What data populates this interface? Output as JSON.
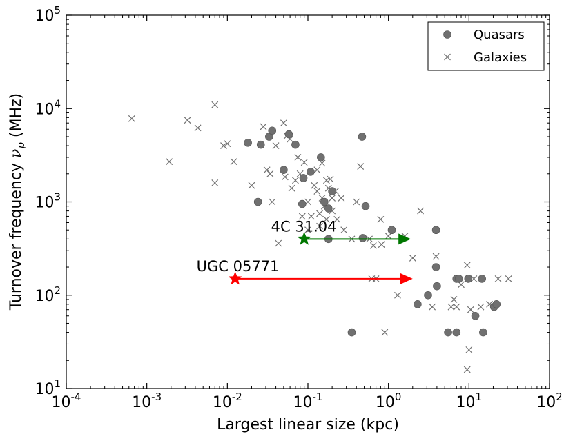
{
  "chart_data": {
    "type": "scatter",
    "title": "",
    "xlabel": "Largest linear size (kpc)",
    "ylabel": "Turnover frequency ν_p (MHz)",
    "xscale": "log",
    "yscale": "log",
    "xlim": [
      0.0001,
      100
    ],
    "ylim": [
      10,
      100000
    ],
    "x_ticks": [
      {
        "base": "10",
        "exp": "-4"
      },
      {
        "base": "10",
        "exp": "-3"
      },
      {
        "base": "10",
        "exp": "-2"
      },
      {
        "base": "10",
        "exp": "-1"
      },
      {
        "base": "10",
        "exp": "0"
      },
      {
        "base": "10",
        "exp": "1"
      },
      {
        "base": "10",
        "exp": "2"
      }
    ],
    "y_ticks": [
      {
        "base": "10",
        "exp": "1"
      },
      {
        "base": "10",
        "exp": "2"
      },
      {
        "base": "10",
        "exp": "3"
      },
      {
        "base": "10",
        "exp": "4"
      },
      {
        "base": "10",
        "exp": "5"
      }
    ],
    "legend_position": "top-right",
    "series": [
      {
        "name": "Quasars",
        "marker": "circle",
        "color": "#707070",
        "points": [
          [
            0.018,
            4300
          ],
          [
            0.024,
            1000
          ],
          [
            0.026,
            4100
          ],
          [
            0.033,
            5000
          ],
          [
            0.036,
            5800
          ],
          [
            0.05,
            2200
          ],
          [
            0.058,
            5300
          ],
          [
            0.07,
            4100
          ],
          [
            0.085,
            950
          ],
          [
            0.088,
            1800
          ],
          [
            0.108,
            2100
          ],
          [
            0.145,
            3000
          ],
          [
            0.16,
            1000
          ],
          [
            0.18,
            400
          ],
          [
            0.2,
            1300
          ],
          [
            0.18,
            850
          ],
          [
            0.35,
            40
          ],
          [
            0.47,
            5000
          ],
          [
            0.48,
            410
          ],
          [
            0.52,
            900
          ],
          [
            1.1,
            500
          ],
          [
            2.3,
            80
          ],
          [
            3.1,
            100
          ],
          [
            3.9,
            500
          ],
          [
            3.9,
            200
          ],
          [
            4.0,
            125
          ],
          [
            5.5,
            40
          ],
          [
            7.0,
            40
          ],
          [
            7.0,
            150
          ],
          [
            7.5,
            150
          ],
          [
            9.8,
            150
          ],
          [
            12.0,
            60
          ],
          [
            14.5,
            150
          ],
          [
            15.0,
            40
          ],
          [
            20.5,
            75
          ],
          [
            22.0,
            80
          ]
        ]
      },
      {
        "name": "Galaxies",
        "marker": "x",
        "color": "#707070",
        "points": [
          [
            0.00065,
            7800
          ],
          [
            0.0019,
            2700
          ],
          [
            0.0032,
            7500
          ],
          [
            0.0043,
            6200
          ],
          [
            0.007,
            11000
          ],
          [
            0.007,
            1600
          ],
          [
            0.009,
            4000
          ],
          [
            0.01,
            4200
          ],
          [
            0.012,
            2700
          ],
          [
            0.02,
            1500
          ],
          [
            0.028,
            6400
          ],
          [
            0.031,
            2200
          ],
          [
            0.034,
            2000
          ],
          [
            0.036,
            1000
          ],
          [
            0.04,
            4000
          ],
          [
            0.043,
            360
          ],
          [
            0.05,
            7000
          ],
          [
            0.052,
            1850
          ],
          [
            0.055,
            5100
          ],
          [
            0.06,
            4700
          ],
          [
            0.063,
            1400
          ],
          [
            0.07,
            1700
          ],
          [
            0.075,
            3000
          ],
          [
            0.08,
            2000
          ],
          [
            0.085,
            700
          ],
          [
            0.09,
            2650
          ],
          [
            0.1,
            500
          ],
          [
            0.1,
            1000
          ],
          [
            0.11,
            700
          ],
          [
            0.12,
            1500
          ],
          [
            0.13,
            1300
          ],
          [
            0.13,
            2200
          ],
          [
            0.14,
            750
          ],
          [
            0.14,
            550
          ],
          [
            0.15,
            2600
          ],
          [
            0.15,
            1100
          ],
          [
            0.16,
            900
          ],
          [
            0.17,
            650
          ],
          [
            0.17,
            1700
          ],
          [
            0.18,
            1400
          ],
          [
            0.19,
            1750
          ],
          [
            0.2,
            800
          ],
          [
            0.2,
            1100
          ],
          [
            0.22,
            1300
          ],
          [
            0.23,
            650
          ],
          [
            0.26,
            1100
          ],
          [
            0.28,
            500
          ],
          [
            0.35,
            400
          ],
          [
            0.4,
            1000
          ],
          [
            0.45,
            2400
          ],
          [
            0.58,
            400
          ],
          [
            0.62,
            150
          ],
          [
            0.65,
            340
          ],
          [
            0.7,
            150
          ],
          [
            0.8,
            650
          ],
          [
            0.82,
            350
          ],
          [
            0.9,
            40
          ],
          [
            1.0,
            430
          ],
          [
            1.3,
            100
          ],
          [
            1.6,
            430
          ],
          [
            2.0,
            250
          ],
          [
            2.5,
            800
          ],
          [
            3.5,
            75
          ],
          [
            3.9,
            260
          ],
          [
            6.0,
            75
          ],
          [
            6.5,
            90
          ],
          [
            7.0,
            75
          ],
          [
            8.0,
            130
          ],
          [
            9.5,
            210
          ],
          [
            9.5,
            16
          ],
          [
            10.0,
            26
          ],
          [
            10.5,
            70
          ],
          [
            11.5,
            150
          ],
          [
            14.0,
            75
          ],
          [
            18.0,
            80
          ],
          [
            23.0,
            150
          ],
          [
            31.0,
            150
          ]
        ]
      }
    ],
    "annotations": [
      {
        "label": "4C 31.04",
        "x": 0.09,
        "y": 400,
        "x_end": 1.9,
        "color": "#007700"
      },
      {
        "label": "UGC 05771",
        "x": 0.0125,
        "y": 150,
        "x_end": 2.0,
        "color": "#ff0000"
      }
    ]
  }
}
